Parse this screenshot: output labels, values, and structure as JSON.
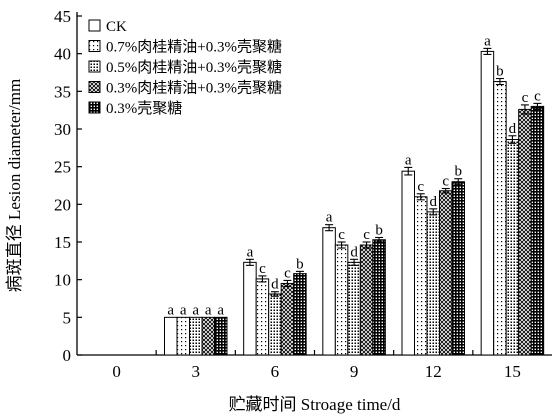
{
  "chart_data": {
    "type": "bar",
    "xlabel": "贮藏时间 Stroage time/d",
    "ylabel": "病斑直径 Lesion diameter/mm",
    "ylim": [
      0,
      45
    ],
    "yticks": [
      0,
      5,
      10,
      15,
      20,
      25,
      30,
      35,
      40,
      45
    ],
    "categories": [
      "0",
      "3",
      "6",
      "9",
      "12",
      "15"
    ],
    "grid": false,
    "legend_position": "top-left",
    "series": [
      {
        "name": "CK",
        "pattern": "white",
        "values": [
          0,
          5.0,
          12.3,
          16.9,
          24.4,
          40.3
        ],
        "errors": [
          0,
          0,
          0.4,
          0.4,
          0.5,
          0.4
        ],
        "labels": [
          "",
          "a",
          "a",
          "a",
          "a",
          "a"
        ]
      },
      {
        "name": "0.7%肉桂精油+0.3%壳聚糖",
        "pattern": "sparse-dots",
        "values": [
          0,
          5.0,
          10.1,
          14.6,
          21.0,
          36.3
        ],
        "errors": [
          0,
          0,
          0.4,
          0.4,
          0.4,
          0.4
        ],
        "labels": [
          "",
          "a",
          "c",
          "c",
          "c",
          "b"
        ]
      },
      {
        "name": "0.5%肉桂精油+0.3%壳聚糖",
        "pattern": "dots",
        "values": [
          0,
          5.0,
          8.1,
          12.3,
          19.0,
          28.6
        ],
        "errors": [
          0,
          0,
          0.3,
          0.4,
          0.4,
          0.5
        ],
        "labels": [
          "",
          "a",
          "d",
          "d",
          "d",
          "d"
        ]
      },
      {
        "name": "0.3%肉桂精油+0.3%壳聚糖",
        "pattern": "cross-hatch",
        "values": [
          0,
          5.0,
          9.5,
          14.6,
          21.8,
          32.6
        ],
        "errors": [
          0,
          0,
          0.4,
          0.4,
          0.3,
          0.6
        ],
        "labels": [
          "",
          "a",
          "c",
          "c",
          "c",
          "c"
        ]
      },
      {
        "name": "0.3%壳聚糖",
        "pattern": "dense-grid",
        "values": [
          0,
          5.0,
          10.8,
          15.3,
          23.0,
          33.0
        ],
        "errors": [
          0,
          0,
          0.3,
          0.3,
          0.4,
          0.4
        ],
        "labels": [
          "",
          "a",
          "b",
          "b",
          "b",
          "c"
        ]
      }
    ]
  }
}
